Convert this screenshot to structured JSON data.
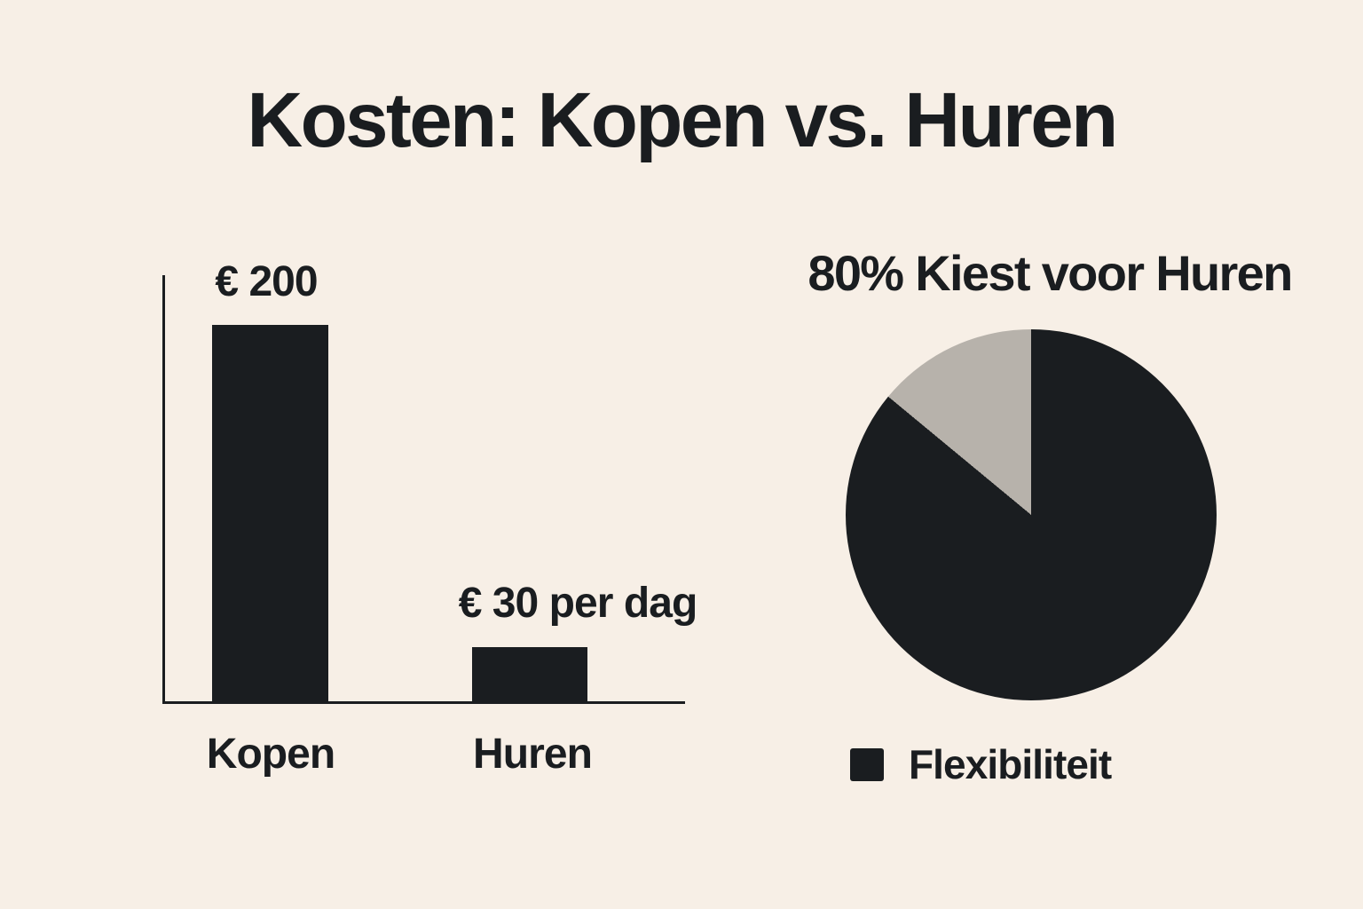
{
  "page": {
    "title": "Kosten: Kopen vs. Huren",
    "background_color": "#f7efe6",
    "ink_color": "#1a1d20"
  },
  "chart_data": [
    {
      "type": "bar",
      "id": "cost-comparison",
      "categories": [
        "Kopen",
        "Huren"
      ],
      "values": [
        200,
        30
      ],
      "value_labels": [
        "€ 200",
        "€ 30 per dag"
      ],
      "currency": "EUR",
      "ylim": [
        0,
        200
      ],
      "grid": false,
      "bar_color": "#1a1d20",
      "axis_color": "#1a1d20",
      "legend_position": "none"
    },
    {
      "type": "pie",
      "id": "choice-share",
      "title": "80% Kiest voor Huren",
      "slices": [
        {
          "label": "Flexibiliteit",
          "value": 86,
          "color": "#1a1d20"
        },
        {
          "label": "",
          "value": 14,
          "color": "#b7b2ab"
        }
      ],
      "start_angle_deg": 0,
      "direction": "clockwise",
      "legend": [
        {
          "label": "Flexibiliteit",
          "color": "#1a1d20"
        }
      ],
      "legend_position": "bottom"
    }
  ]
}
